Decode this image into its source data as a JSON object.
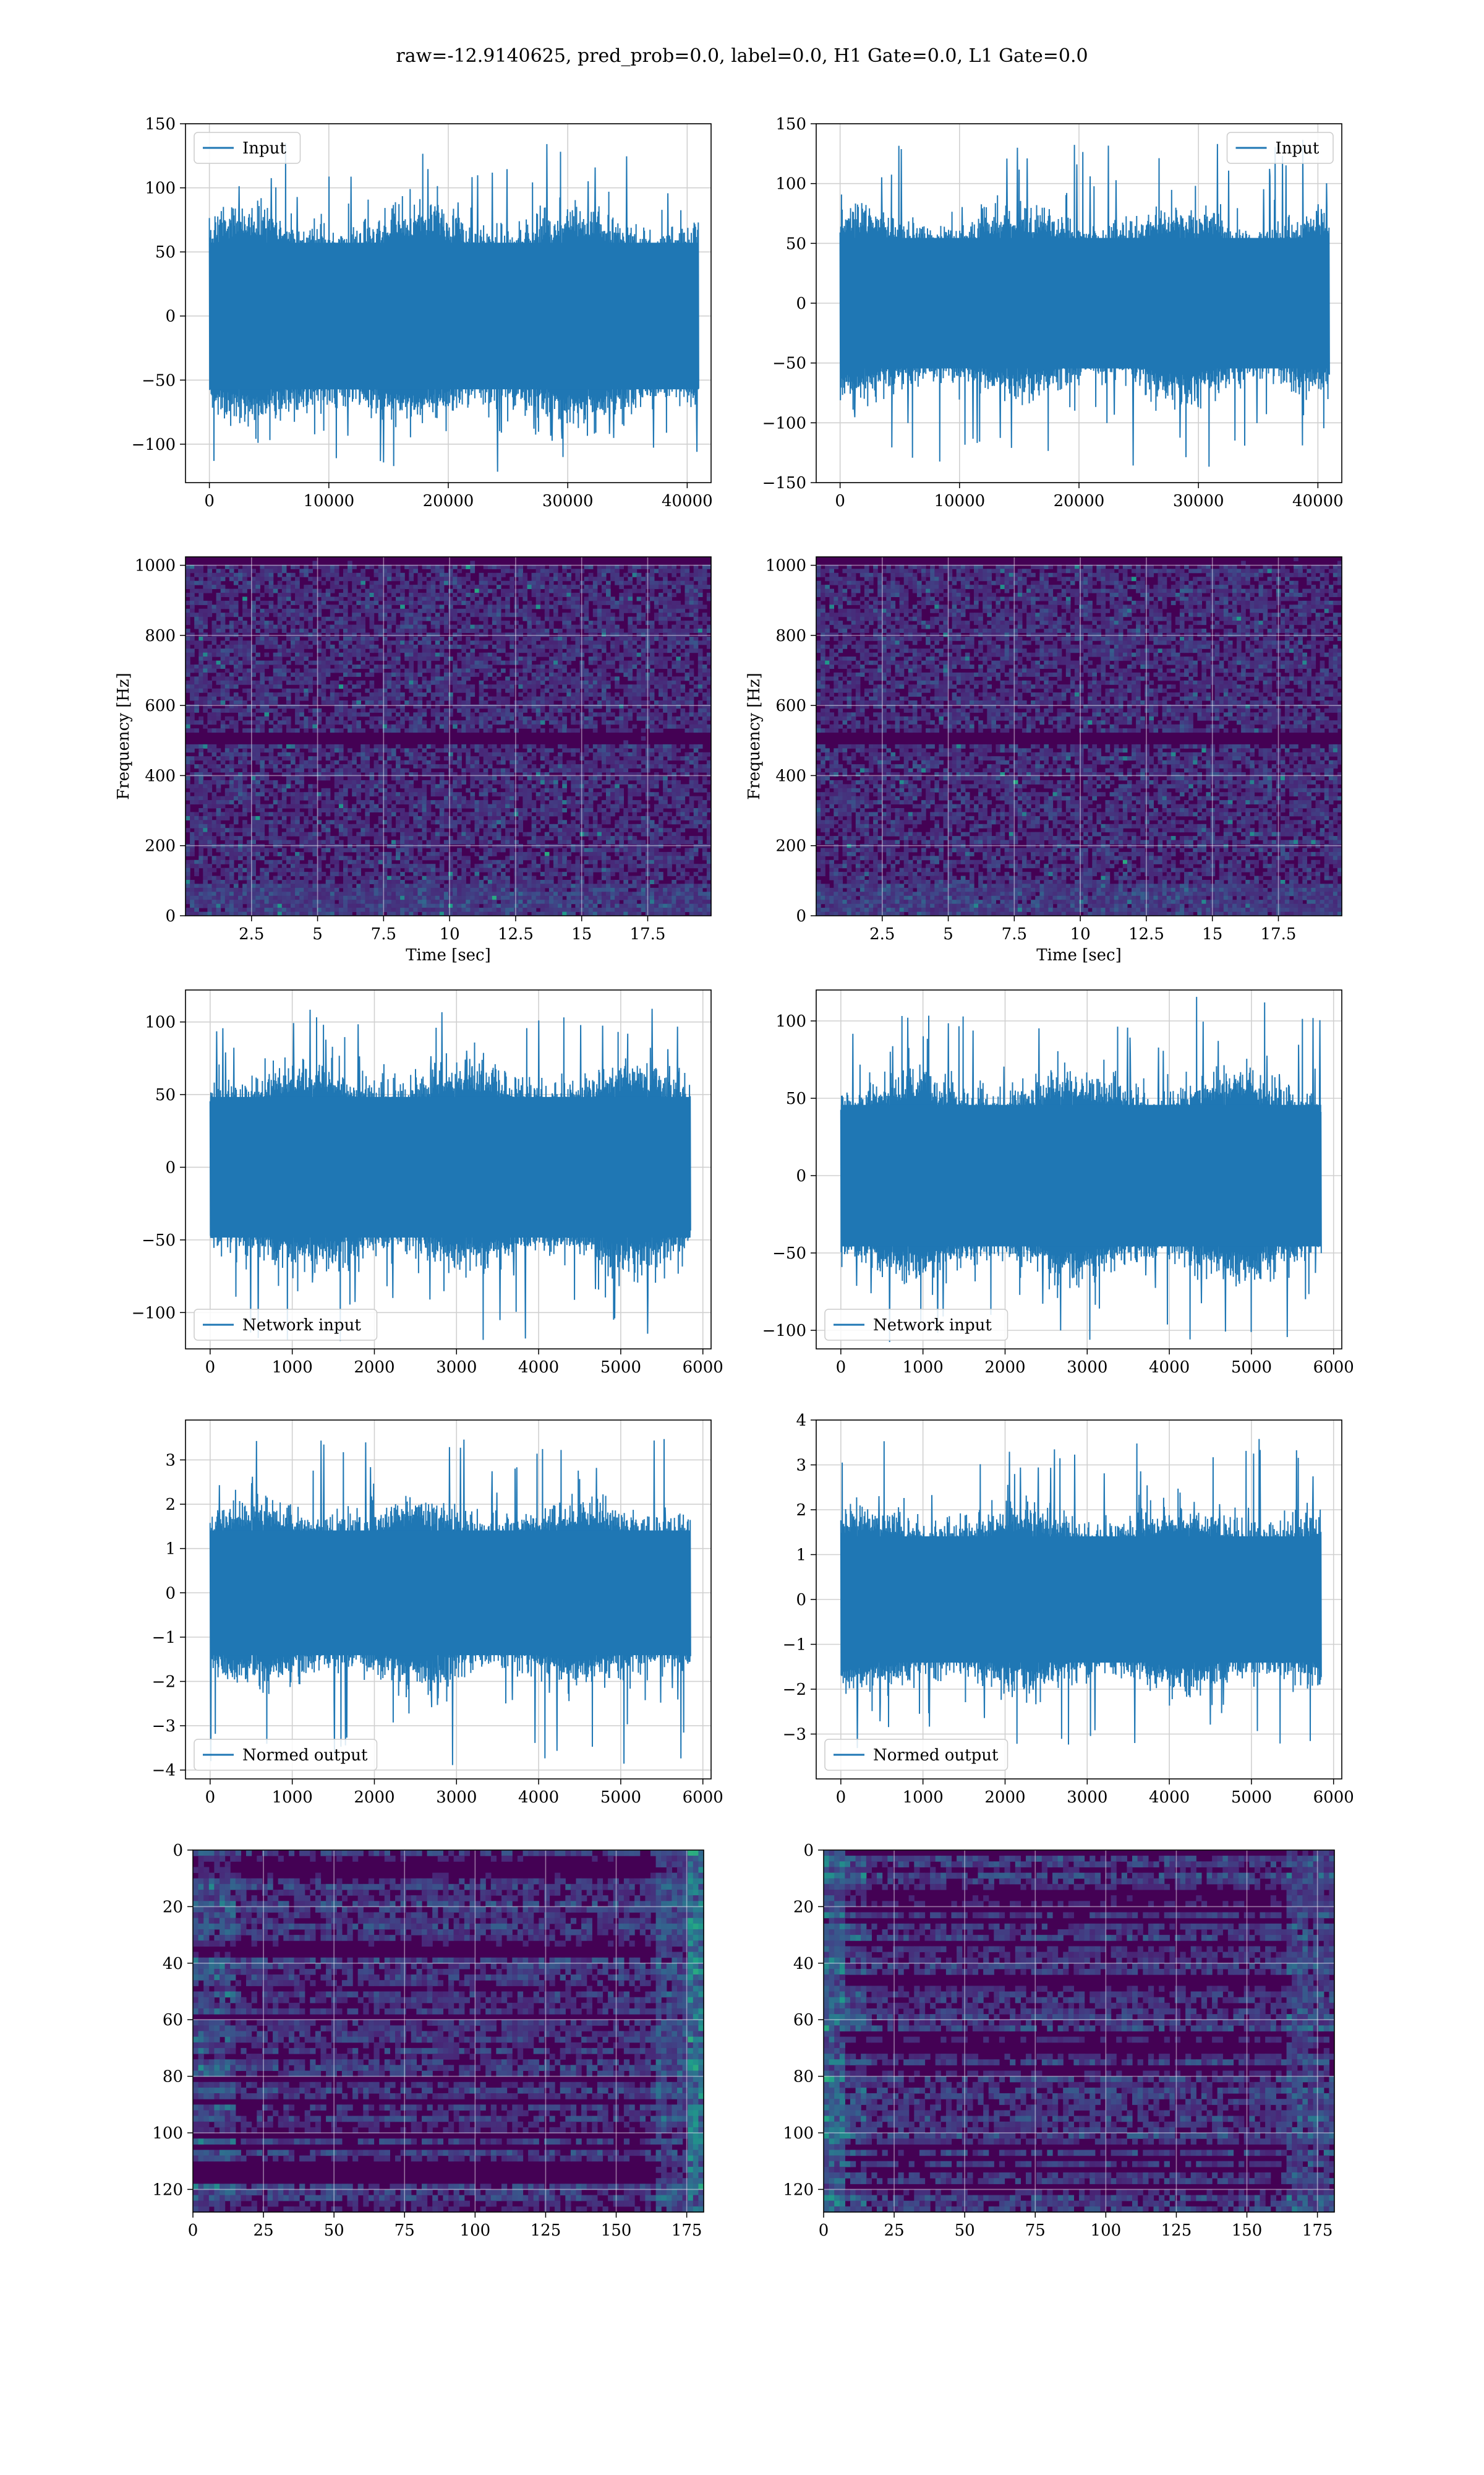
{
  "figure": {
    "title": "raw=-12.9140625, pred_prob=0.0, label=0.0, H1 Gate=0.0, L1 Gate=0.0"
  },
  "colors": {
    "line": "#1f77b4",
    "grid": "#d0d0d0",
    "viridis_dark": "#440154",
    "viridis_mid": "#3b528b",
    "viridis_teal": "#21918c",
    "viridis_green": "#5ec962",
    "viridis_yellow": "#fde725"
  },
  "chart_data": [
    {
      "id": "r1c1",
      "type": "line",
      "series": [
        {
          "name": "Input"
        }
      ],
      "legend": "upper-left",
      "xlim": [
        -2000,
        42000
      ],
      "ylim": [
        -130,
        150
      ],
      "xticks": [
        0,
        10000,
        20000,
        30000,
        40000
      ],
      "yticks": [
        -100,
        -50,
        0,
        50,
        100,
        150
      ],
      "x_extent": [
        0,
        40960
      ],
      "envelope": {
        "typical": 65,
        "max": 135,
        "min": -122
      }
    },
    {
      "id": "r1c2",
      "type": "line",
      "series": [
        {
          "name": "Input"
        }
      ],
      "legend": "upper-right",
      "xlim": [
        -2000,
        42000
      ],
      "ylim": [
        -150,
        150
      ],
      "xticks": [
        0,
        10000,
        20000,
        30000,
        40000
      ],
      "yticks": [
        -150,
        -100,
        -50,
        0,
        50,
        100,
        150
      ],
      "x_extent": [
        0,
        40960
      ],
      "envelope": {
        "typical": 62,
        "max": 137,
        "min": -138
      }
    },
    {
      "id": "r2c1",
      "type": "heatmap",
      "xlabel": "Time [sec]",
      "ylabel": "Frequency [Hz]",
      "xlim": [
        0,
        19.9
      ],
      "ylim": [
        0,
        1024
      ],
      "xticks": [
        2.5,
        5.0,
        7.5,
        10.0,
        12.5,
        15.0,
        17.5
      ],
      "yticks": [
        0,
        200,
        400,
        600,
        800,
        1000
      ],
      "colormap": "viridis",
      "grid": true
    },
    {
      "id": "r2c2",
      "type": "heatmap",
      "xlabel": "Time [sec]",
      "ylabel": "Frequency [Hz]",
      "xlim": [
        0,
        19.9
      ],
      "ylim": [
        0,
        1024
      ],
      "xticks": [
        2.5,
        5.0,
        7.5,
        10.0,
        12.5,
        15.0,
        17.5
      ],
      "yticks": [
        0,
        200,
        400,
        600,
        800,
        1000
      ],
      "colormap": "viridis",
      "grid": true
    },
    {
      "id": "r3c1",
      "type": "line",
      "series": [
        {
          "name": "Network input"
        }
      ],
      "legend": "lower-left",
      "xlim": [
        -300,
        6100
      ],
      "ylim": [
        -125,
        122
      ],
      "xticks": [
        0,
        1000,
        2000,
        3000,
        4000,
        5000,
        6000
      ],
      "yticks": [
        -100,
        -50,
        0,
        50,
        100
      ],
      "x_extent": [
        0,
        5850
      ],
      "envelope": {
        "typical": 55,
        "max": 112,
        "min": -120
      }
    },
    {
      "id": "r3c2",
      "type": "line",
      "series": [
        {
          "name": "Network input"
        }
      ],
      "legend": "lower-left",
      "xlim": [
        -300,
        6100
      ],
      "ylim": [
        -112,
        120
      ],
      "xticks": [
        0,
        1000,
        2000,
        3000,
        4000,
        5000,
        6000
      ],
      "yticks": [
        -100,
        -50,
        0,
        50,
        100
      ],
      "x_extent": [
        0,
        5850
      ],
      "envelope": {
        "typical": 52,
        "max": 116,
        "min": -112
      }
    },
    {
      "id": "r4c1",
      "type": "line",
      "series": [
        {
          "name": "Normed output"
        }
      ],
      "legend": "lower-left",
      "xlim": [
        -300,
        6100
      ],
      "ylim": [
        -4.2,
        3.9
      ],
      "xticks": [
        0,
        1000,
        2000,
        3000,
        4000,
        5000,
        6000
      ],
      "yticks": [
        -4,
        -3,
        -2,
        -1,
        0,
        1,
        2,
        3
      ],
      "x_extent": [
        0,
        5850
      ],
      "envelope": {
        "typical": 1.6,
        "max": 3.5,
        "min": -3.9
      }
    },
    {
      "id": "r4c2",
      "type": "line",
      "series": [
        {
          "name": "Normed output"
        }
      ],
      "legend": "lower-left",
      "xlim": [
        -300,
        6100
      ],
      "ylim": [
        -4.0,
        4.0
      ],
      "xticks": [
        0,
        1000,
        2000,
        3000,
        4000,
        5000,
        6000
      ],
      "yticks": [
        -3,
        -2,
        -1,
        0,
        1,
        2,
        3,
        4
      ],
      "x_extent": [
        0,
        5850
      ],
      "envelope": {
        "typical": 1.6,
        "max": 3.7,
        "min": -3.6
      }
    },
    {
      "id": "r5c1",
      "type": "heatmap",
      "xlim": [
        0,
        181
      ],
      "ylim": [
        128,
        0
      ],
      "xticks": [
        0,
        25,
        50,
        75,
        100,
        125,
        150,
        175
      ],
      "yticks": [
        0,
        20,
        40,
        60,
        80,
        100,
        120
      ],
      "colormap": "viridis",
      "grid": true
    },
    {
      "id": "r5c2",
      "type": "heatmap",
      "xlim": [
        0,
        181
      ],
      "ylim": [
        128,
        0
      ],
      "xticks": [
        0,
        25,
        50,
        75,
        100,
        125,
        150,
        175
      ],
      "yticks": [
        0,
        20,
        40,
        60,
        80,
        100,
        120
      ],
      "colormap": "viridis",
      "grid": true
    }
  ]
}
